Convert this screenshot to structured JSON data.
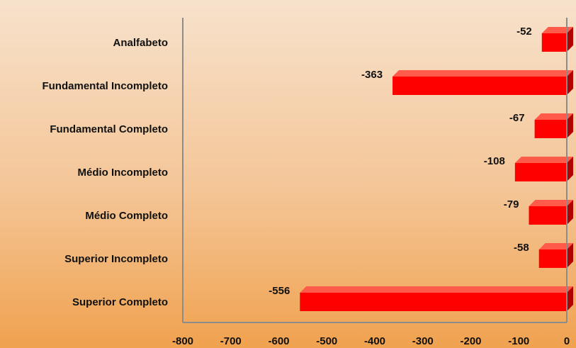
{
  "chart_data": {
    "type": "bar",
    "orientation": "horizontal",
    "categories": [
      "Analfabeto",
      "Fundamental Incompleto",
      "Fundamental Completo",
      "Médio Incompleto",
      "Médio Completo",
      "Superior Incompleto",
      "Superior Completo"
    ],
    "values": [
      -52,
      -363,
      -67,
      -108,
      -79,
      -58,
      -556
    ],
    "title": "",
    "xlabel": "",
    "ylabel": "",
    "xlim": [
      -800,
      0
    ],
    "ticks": [
      "-800",
      "-700",
      "-600",
      "-500",
      "-400",
      "-300",
      "-200",
      "-100",
      "0"
    ],
    "grid": false,
    "legend": "none",
    "bar_color": "#ff0000",
    "bar_side_color": "#b30000",
    "bar_top_color": "#ff5a4a",
    "axis_color": "#8c8c8c"
  }
}
